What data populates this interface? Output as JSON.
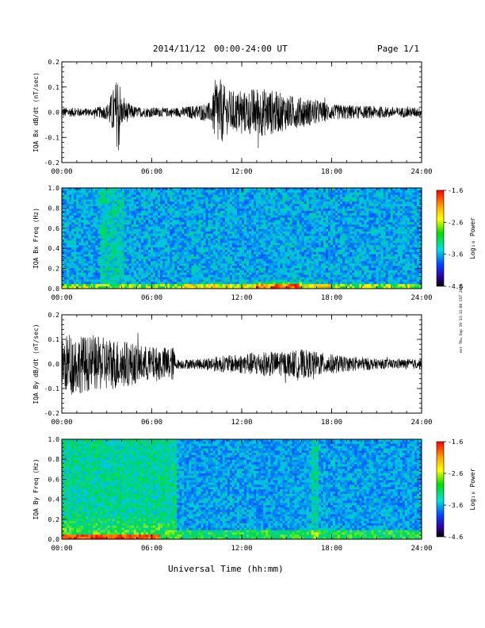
{
  "header": {
    "date": "2014/11/12",
    "time_range": "00:00-24:00 UT",
    "page": "Page 1/1"
  },
  "side_note": "ext Thu Sep 19 13:11:06 CST 2019",
  "xlabel_bottom": "Universal Time (hh:mm)",
  "colorbar": {
    "label": "Log₁₀ Power",
    "ticks": [
      "-1.6",
      "-2.6",
      "-3.6",
      "-4.6"
    ],
    "colors": [
      "#ff0000",
      "#ffff00",
      "#00dd00",
      "#00e0e0",
      "#0000ff",
      "#000000"
    ]
  },
  "chart_data": [
    {
      "type": "line",
      "name": "bx-dbdt",
      "ylabel": "IQA Bx dB/dt (nT/sec)",
      "xticks": [
        "00:00",
        "06:00",
        "12:00",
        "18:00",
        "24:00"
      ],
      "yticks": [
        "0.2",
        "0.1",
        "0.0",
        "-0.1",
        "-0.2"
      ],
      "xlim": [
        0,
        24
      ],
      "ylim": [
        -0.2,
        0.2
      ],
      "series": [
        {
          "x": [
            0,
            1,
            2,
            3,
            3.6,
            3.8,
            4,
            5,
            6,
            7,
            8,
            9,
            10,
            10.3,
            11,
            12,
            13,
            14,
            15,
            16,
            17,
            18,
            19,
            20,
            21,
            22,
            23,
            24
          ],
          "amp": [
            0.02,
            0.018,
            0.015,
            0.03,
            0.12,
            0.18,
            0.05,
            0.02,
            0.02,
            0.018,
            0.02,
            0.03,
            0.04,
            0.16,
            0.09,
            0.08,
            0.1,
            0.09,
            0.07,
            0.06,
            0.05,
            0.03,
            0.03,
            0.025,
            0.025,
            0.02,
            0.02,
            0.02
          ]
        }
      ]
    },
    {
      "type": "heatmap",
      "name": "bx-spectrogram",
      "ylabel": "IQA Bx Freq (Hz)",
      "xticks": [
        "00:00",
        "06:00",
        "12:00",
        "18:00",
        "24:00"
      ],
      "yticks": [
        "1.0",
        "0.8",
        "0.6",
        "0.4",
        "0.2",
        "0.0"
      ],
      "xlim": [
        0,
        24
      ],
      "ylim": [
        0,
        1.0
      ],
      "zlim": [
        -4.6,
        -1.6
      ]
    },
    {
      "type": "line",
      "name": "by-dbdt",
      "ylabel": "IQA By dB/dt (nT/sec)",
      "xticks": [
        "00:00",
        "06:00",
        "12:00",
        "18:00",
        "24:00"
      ],
      "yticks": [
        "0.2",
        "0.1",
        "0.0",
        "-0.1",
        "-0.2"
      ],
      "xlim": [
        0,
        24
      ],
      "ylim": [
        -0.2,
        0.2
      ],
      "series": [
        {
          "x": [
            0,
            0.5,
            1,
            2,
            3,
            4,
            5,
            6,
            7,
            7.5,
            7.6,
            8,
            9,
            10,
            11,
            12,
            13,
            14,
            15,
            16,
            17,
            18,
            19,
            20,
            21,
            22,
            23,
            24
          ],
          "amp": [
            0.1,
            0.13,
            0.12,
            0.11,
            0.11,
            0.1,
            0.08,
            0.07,
            0.07,
            0.07,
            0.02,
            0.02,
            0.02,
            0.03,
            0.035,
            0.04,
            0.05,
            0.05,
            0.05,
            0.06,
            0.05,
            0.04,
            0.03,
            0.03,
            0.02,
            0.02,
            0.02,
            0.02
          ]
        }
      ]
    },
    {
      "type": "heatmap",
      "name": "by-spectrogram",
      "ylabel": "IQA By Freq (Hz)",
      "xticks": [
        "00:00",
        "06:00",
        "12:00",
        "18:00",
        "24:00"
      ],
      "yticks": [
        "1.0",
        "0.8",
        "0.6",
        "0.4",
        "0.2",
        "0.0"
      ],
      "xlim": [
        0,
        24
      ],
      "ylim": [
        0,
        1.0
      ],
      "zlim": [
        -4.6,
        -1.6
      ]
    }
  ]
}
